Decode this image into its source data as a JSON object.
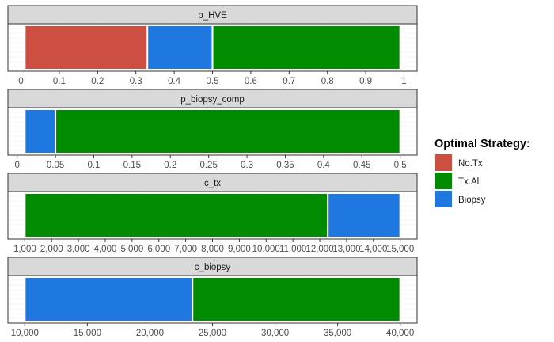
{
  "chart_data": {
    "type": "bar",
    "orientation": "horizontal-stacked-ranges",
    "legend": {
      "title": "Optimal Strategy:",
      "placement": "right",
      "entries": [
        {
          "key": "No.Tx",
          "label": "No.Tx",
          "color": "#CD4F41"
        },
        {
          "key": "Tx.All",
          "label": "Tx.All",
          "color": "#008B00"
        },
        {
          "key": "Biopsy",
          "label": "Biopsy",
          "color": "#1F78E0"
        }
      ]
    },
    "grid": true,
    "panels": [
      {
        "strip_label": "p_HVE",
        "xlim": [
          0.01,
          0.99
        ],
        "ticks": [
          0,
          0.1,
          0.2,
          0.3,
          0.4,
          0.5,
          0.6,
          0.7,
          0.8,
          0.9,
          1
        ],
        "tick_labels": [
          "0",
          "0.1",
          "0.2",
          "0.3",
          "0.4",
          "0.5",
          "0.6",
          "0.7",
          "0.8",
          "0.9",
          "1"
        ],
        "segments": [
          {
            "strategy": "No.Tx",
            "from": 0.01,
            "to": 0.33
          },
          {
            "strategy": "Biopsy",
            "from": 0.33,
            "to": 0.5
          },
          {
            "strategy": "Tx.All",
            "from": 0.5,
            "to": 0.99
          }
        ]
      },
      {
        "strip_label": "p_biopsy_comp",
        "xlim": [
          0.01,
          0.5
        ],
        "ticks": [
          0,
          0.05,
          0.1,
          0.15,
          0.2,
          0.25,
          0.3,
          0.35,
          0.4,
          0.45,
          0.5
        ],
        "tick_labels": [
          "0",
          "0.05",
          "0.1",
          "0.15",
          "0.2",
          "0.25",
          "0.3",
          "0.35",
          "0.4",
          "0.45",
          "0.5"
        ],
        "segments": [
          {
            "strategy": "Biopsy",
            "from": 0.01,
            "to": 0.05
          },
          {
            "strategy": "Tx.All",
            "from": 0.05,
            "to": 0.5
          }
        ]
      },
      {
        "strip_label": "c_tx",
        "xlim": [
          1000,
          15000
        ],
        "ticks": [
          1000,
          2000,
          3000,
          4000,
          5000,
          6000,
          7000,
          8000,
          9000,
          10000,
          11000,
          12000,
          13000,
          14000,
          15000
        ],
        "tick_labels": [
          "1,000",
          "2,000",
          "3,000",
          "4,000",
          "5,000",
          "6,000",
          "7,000",
          "8,000",
          "9,000",
          "10,000",
          "11,000",
          "12,000",
          "13,000",
          "14,000",
          "15,000"
        ],
        "segments": [
          {
            "strategy": "Tx.All",
            "from": 1000,
            "to": 12300
          },
          {
            "strategy": "Biopsy",
            "from": 12300,
            "to": 15000
          }
        ]
      },
      {
        "strip_label": "c_biopsy",
        "xlim": [
          10000,
          40000
        ],
        "ticks": [
          10000,
          15000,
          20000,
          25000,
          30000,
          35000,
          40000
        ],
        "tick_labels": [
          "10,000",
          "15,000",
          "20,000",
          "25,000",
          "30,000",
          "35,000",
          "40,000"
        ],
        "segments": [
          {
            "strategy": "Biopsy",
            "from": 10000,
            "to": 23400
          },
          {
            "strategy": "Tx.All",
            "from": 23400,
            "to": 40000
          }
        ]
      }
    ]
  }
}
